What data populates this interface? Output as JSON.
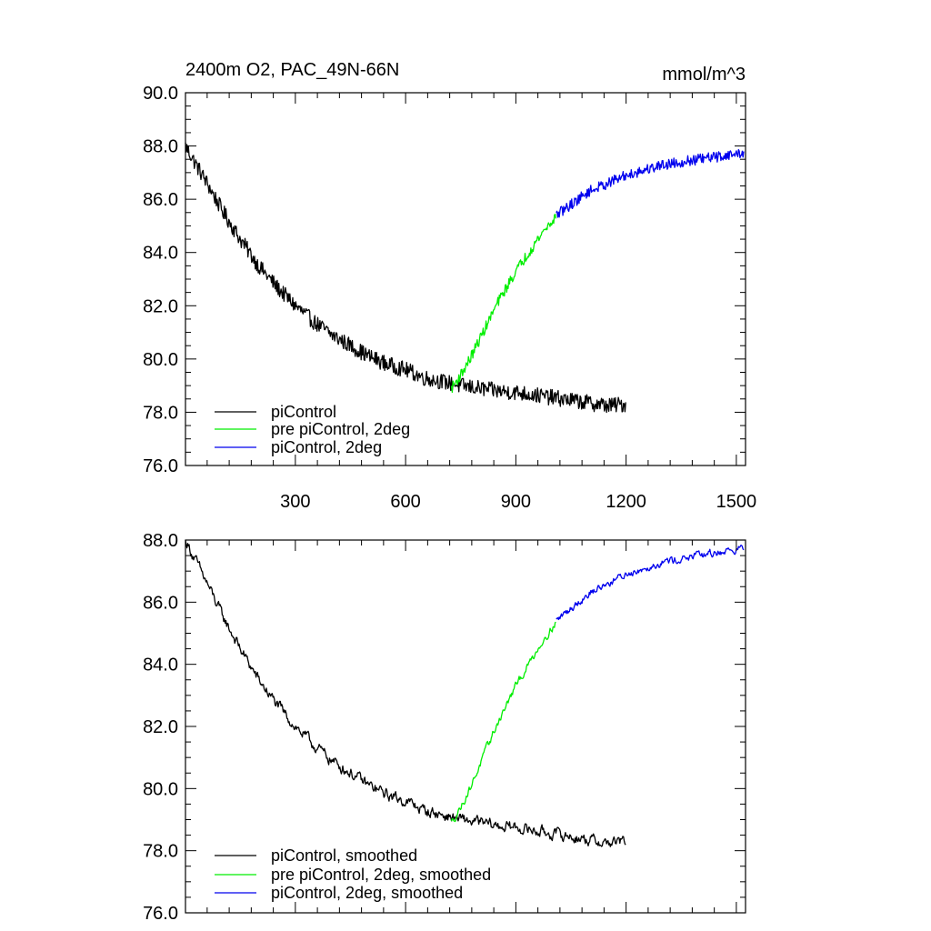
{
  "colors": {
    "picontrol": "#000000",
    "pre_picontrol_2deg": "#00ee00",
    "picontrol_2deg": "#0000ee"
  },
  "header": {
    "title": "2400m O2, PAC_49N-66N",
    "units": "mmol/m^3"
  },
  "chart_data": [
    {
      "type": "line",
      "title": "2400m O2, PAC_49N-66N",
      "units": "mmol/m^3",
      "xlim": [
        1,
        1525
      ],
      "ylim": [
        76.0,
        90.0
      ],
      "grid": false,
      "legend_position": "bottom-left",
      "x_ticks": [
        300,
        600,
        900,
        1200,
        1500
      ],
      "y_ticks": [
        "76.0",
        "78.0",
        "80.0",
        "82.0",
        "84.0",
        "86.0",
        "88.0",
        "90.0"
      ],
      "x_tick_labels": [
        "300",
        "600",
        "900",
        "1200",
        "1500"
      ],
      "series": [
        {
          "name": "piControl",
          "color": "#000000",
          "x": [
            1,
            30,
            60,
            100,
            150,
            200,
            250,
            300,
            350,
            400,
            450,
            500,
            550,
            600,
            650,
            700,
            750,
            800,
            850,
            900,
            950,
            1000,
            1050,
            1100,
            1150,
            1200
          ],
          "y": [
            88.0,
            87.3,
            86.6,
            85.6,
            84.5,
            83.5,
            82.7,
            82.0,
            81.4,
            80.9,
            80.5,
            80.1,
            79.8,
            79.6,
            79.3,
            79.15,
            79.0,
            78.9,
            78.8,
            78.75,
            78.65,
            78.55,
            78.45,
            78.35,
            78.25,
            78.3
          ],
          "noise": 0.3
        },
        {
          "name": "pre piControl, 2deg",
          "color": "#00ee00",
          "x": [
            725,
            750,
            775,
            800,
            825,
            850,
            875,
            900,
            925,
            950,
            975,
            1000,
            1010
          ],
          "y": [
            78.9,
            79.4,
            80.0,
            80.7,
            81.4,
            82.1,
            82.7,
            83.3,
            83.8,
            84.3,
            84.8,
            85.2,
            85.4
          ],
          "noise": 0.2
        },
        {
          "name": "piControl, 2deg",
          "color": "#0000ee",
          "x": [
            1010,
            1050,
            1100,
            1150,
            1200,
            1250,
            1300,
            1350,
            1400,
            1450,
            1500,
            1520
          ],
          "y": [
            85.4,
            85.8,
            86.3,
            86.6,
            86.9,
            87.1,
            87.3,
            87.4,
            87.5,
            87.6,
            87.7,
            87.75
          ],
          "noise": 0.2
        }
      ]
    },
    {
      "type": "line",
      "xlim": [
        1,
        1525
      ],
      "ylim": [
        76.0,
        88.0
      ],
      "grid": false,
      "legend_position": "bottom-left",
      "x_ticks": [
        300,
        600,
        900,
        1200,
        1500
      ],
      "y_ticks": [
        "76.0",
        "78.0",
        "80.0",
        "82.0",
        "84.0",
        "86.0",
        "88.0"
      ],
      "series": [
        {
          "name": "piControl, smoothed",
          "color": "#000000",
          "x": [
            1,
            30,
            60,
            100,
            150,
            200,
            250,
            300,
            350,
            400,
            450,
            500,
            550,
            600,
            650,
            700,
            750,
            800,
            850,
            900,
            950,
            1000,
            1050,
            1100,
            1150,
            1200
          ],
          "y": [
            88.0,
            87.3,
            86.6,
            85.6,
            84.5,
            83.5,
            82.7,
            82.0,
            81.4,
            80.9,
            80.5,
            80.1,
            79.8,
            79.6,
            79.3,
            79.15,
            79.0,
            78.9,
            78.8,
            78.75,
            78.65,
            78.55,
            78.45,
            78.35,
            78.25,
            78.3
          ],
          "noise": 0.18
        },
        {
          "name": "pre piControl, 2deg, smoothed",
          "color": "#00ee00",
          "x": [
            725,
            750,
            775,
            800,
            825,
            850,
            875,
            900,
            925,
            950,
            975,
            1000,
            1010
          ],
          "y": [
            78.9,
            79.4,
            80.0,
            80.7,
            81.4,
            82.1,
            82.7,
            83.3,
            83.8,
            84.3,
            84.8,
            85.2,
            85.4
          ],
          "noise": 0.12
        },
        {
          "name": "piControl, 2deg, smoothed",
          "color": "#0000ee",
          "x": [
            1010,
            1050,
            1100,
            1150,
            1200,
            1250,
            1300,
            1350,
            1400,
            1450,
            1500,
            1520
          ],
          "y": [
            85.4,
            85.8,
            86.3,
            86.6,
            86.9,
            87.1,
            87.3,
            87.4,
            87.5,
            87.6,
            87.7,
            87.75
          ],
          "noise": 0.12
        }
      ]
    }
  ]
}
